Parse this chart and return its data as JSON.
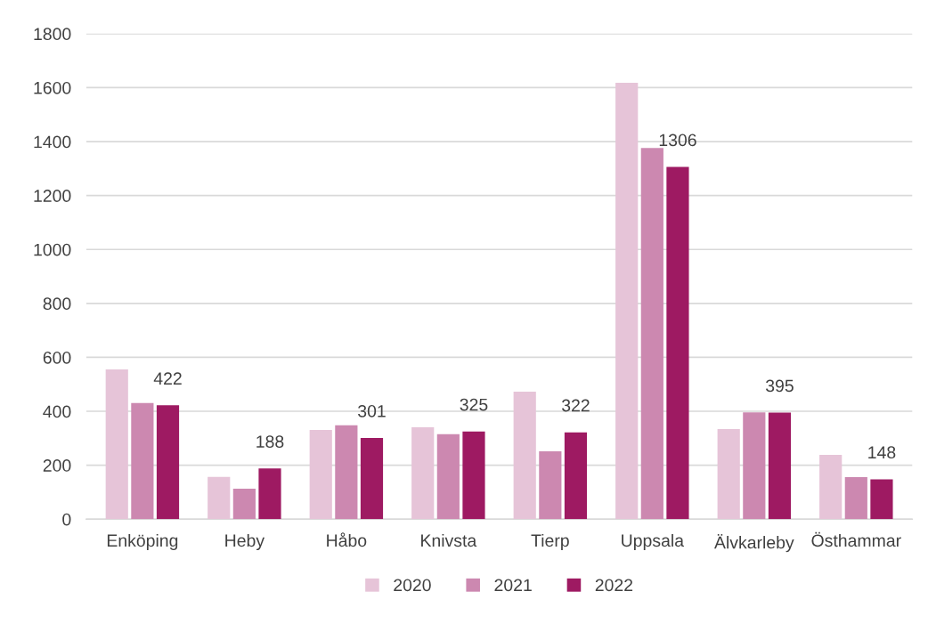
{
  "chart_data": {
    "type": "bar",
    "categories": [
      "Enköping",
      "Heby",
      "Håbo",
      "Knivsta",
      "Tierp",
      "Uppsala",
      "Älvkarleby",
      "Östhammar"
    ],
    "series": [
      {
        "name": "2020",
        "color": "#e6c4d8",
        "values": [
          555,
          157,
          331,
          341,
          473,
          1618,
          334,
          238
        ]
      },
      {
        "name": "2021",
        "color": "#cc88b0",
        "values": [
          431,
          113,
          348,
          315,
          252,
          1376,
          396,
          156
        ]
      },
      {
        "name": "2022",
        "color": "#9e1a62",
        "values": [
          422,
          188,
          301,
          325,
          322,
          1306,
          395,
          148
        ],
        "value_labels": [
          "422",
          "188",
          "301",
          "325",
          "322",
          "1306",
          "395",
          "148"
        ]
      }
    ],
    "ylim": [
      0,
      1800
    ],
    "yticks": [
      0,
      200,
      400,
      600,
      800,
      1000,
      1200,
      1400,
      1600,
      1800
    ],
    "grid": "y",
    "legend": "bottom"
  }
}
